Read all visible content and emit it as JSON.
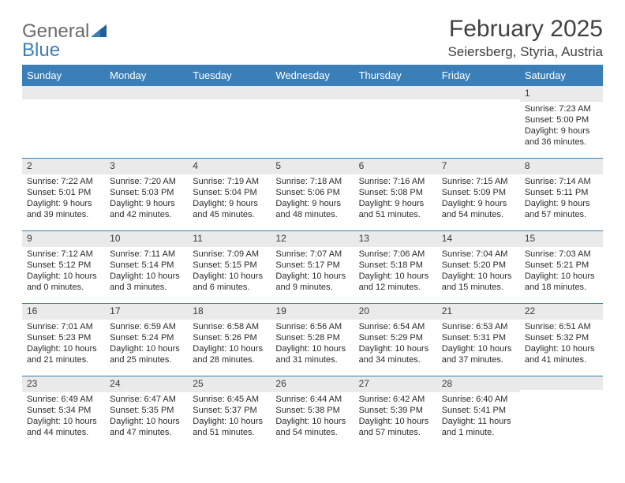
{
  "colors": {
    "accent": "#3b7fb8",
    "logo_gray": "#6b6b6b",
    "text": "#2b2b2b",
    "bar_bg": "#eaeaea",
    "bg": "#ffffff"
  },
  "logo": {
    "word1": "General",
    "word2": "Blue"
  },
  "title": "February 2025",
  "location": "Seiersberg, Styria, Austria",
  "weekdays": [
    "Sunday",
    "Monday",
    "Tuesday",
    "Wednesday",
    "Thursday",
    "Friday",
    "Saturday"
  ],
  "layout": {
    "cols": 7,
    "rows": 5,
    "first_weekday_index": 6,
    "days_in_month": 28
  },
  "days": [
    {
      "n": 1,
      "sunrise": "7:23 AM",
      "sunset": "5:00 PM",
      "daylight": "9 hours and 36 minutes."
    },
    {
      "n": 2,
      "sunrise": "7:22 AM",
      "sunset": "5:01 PM",
      "daylight": "9 hours and 39 minutes."
    },
    {
      "n": 3,
      "sunrise": "7:20 AM",
      "sunset": "5:03 PM",
      "daylight": "9 hours and 42 minutes."
    },
    {
      "n": 4,
      "sunrise": "7:19 AM",
      "sunset": "5:04 PM",
      "daylight": "9 hours and 45 minutes."
    },
    {
      "n": 5,
      "sunrise": "7:18 AM",
      "sunset": "5:06 PM",
      "daylight": "9 hours and 48 minutes."
    },
    {
      "n": 6,
      "sunrise": "7:16 AM",
      "sunset": "5:08 PM",
      "daylight": "9 hours and 51 minutes."
    },
    {
      "n": 7,
      "sunrise": "7:15 AM",
      "sunset": "5:09 PM",
      "daylight": "9 hours and 54 minutes."
    },
    {
      "n": 8,
      "sunrise": "7:14 AM",
      "sunset": "5:11 PM",
      "daylight": "9 hours and 57 minutes."
    },
    {
      "n": 9,
      "sunrise": "7:12 AM",
      "sunset": "5:12 PM",
      "daylight": "10 hours and 0 minutes."
    },
    {
      "n": 10,
      "sunrise": "7:11 AM",
      "sunset": "5:14 PM",
      "daylight": "10 hours and 3 minutes."
    },
    {
      "n": 11,
      "sunrise": "7:09 AM",
      "sunset": "5:15 PM",
      "daylight": "10 hours and 6 minutes."
    },
    {
      "n": 12,
      "sunrise": "7:07 AM",
      "sunset": "5:17 PM",
      "daylight": "10 hours and 9 minutes."
    },
    {
      "n": 13,
      "sunrise": "7:06 AM",
      "sunset": "5:18 PM",
      "daylight": "10 hours and 12 minutes."
    },
    {
      "n": 14,
      "sunrise": "7:04 AM",
      "sunset": "5:20 PM",
      "daylight": "10 hours and 15 minutes."
    },
    {
      "n": 15,
      "sunrise": "7:03 AM",
      "sunset": "5:21 PM",
      "daylight": "10 hours and 18 minutes."
    },
    {
      "n": 16,
      "sunrise": "7:01 AM",
      "sunset": "5:23 PM",
      "daylight": "10 hours and 21 minutes."
    },
    {
      "n": 17,
      "sunrise": "6:59 AM",
      "sunset": "5:24 PM",
      "daylight": "10 hours and 25 minutes."
    },
    {
      "n": 18,
      "sunrise": "6:58 AM",
      "sunset": "5:26 PM",
      "daylight": "10 hours and 28 minutes."
    },
    {
      "n": 19,
      "sunrise": "6:56 AM",
      "sunset": "5:28 PM",
      "daylight": "10 hours and 31 minutes."
    },
    {
      "n": 20,
      "sunrise": "6:54 AM",
      "sunset": "5:29 PM",
      "daylight": "10 hours and 34 minutes."
    },
    {
      "n": 21,
      "sunrise": "6:53 AM",
      "sunset": "5:31 PM",
      "daylight": "10 hours and 37 minutes."
    },
    {
      "n": 22,
      "sunrise": "6:51 AM",
      "sunset": "5:32 PM",
      "daylight": "10 hours and 41 minutes."
    },
    {
      "n": 23,
      "sunrise": "6:49 AM",
      "sunset": "5:34 PM",
      "daylight": "10 hours and 44 minutes."
    },
    {
      "n": 24,
      "sunrise": "6:47 AM",
      "sunset": "5:35 PM",
      "daylight": "10 hours and 47 minutes."
    },
    {
      "n": 25,
      "sunrise": "6:45 AM",
      "sunset": "5:37 PM",
      "daylight": "10 hours and 51 minutes."
    },
    {
      "n": 26,
      "sunrise": "6:44 AM",
      "sunset": "5:38 PM",
      "daylight": "10 hours and 54 minutes."
    },
    {
      "n": 27,
      "sunrise": "6:42 AM",
      "sunset": "5:39 PM",
      "daylight": "10 hours and 57 minutes."
    },
    {
      "n": 28,
      "sunrise": "6:40 AM",
      "sunset": "5:41 PM",
      "daylight": "11 hours and 1 minute."
    }
  ],
  "labels": {
    "sunrise": "Sunrise: ",
    "sunset": "Sunset: ",
    "daylight": "Daylight: "
  }
}
